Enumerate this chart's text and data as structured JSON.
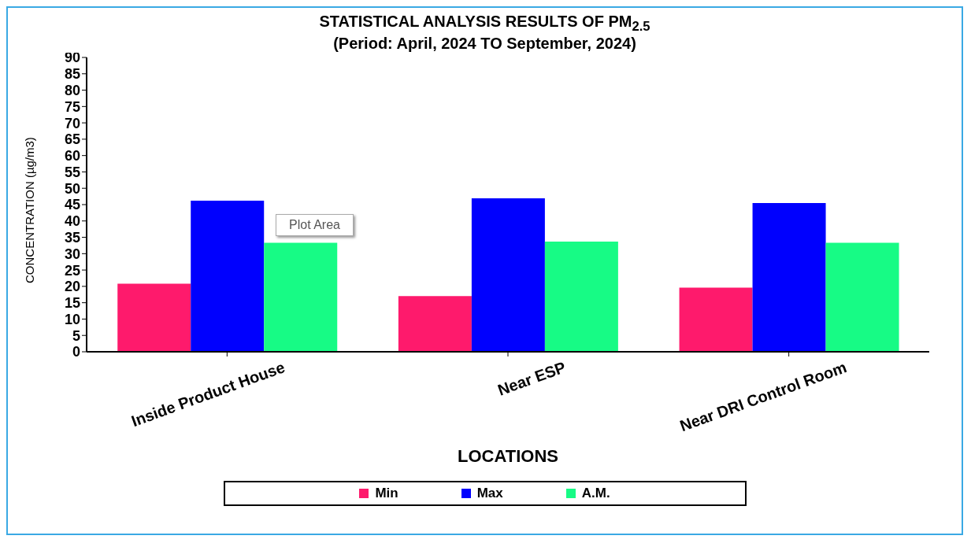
{
  "chart_data": {
    "type": "bar",
    "title": "STATISTICAL ANALYSIS RESULTS OF PM$_{2.5}$",
    "subtitle": "(Period: April, 2024 TO September, 2024)",
    "xlabel": "LOCATIONS",
    "ylabel": "CONCENTRATION (µg/m3)",
    "categories": [
      "Inside Product House",
      "Near ESP",
      "Near DRI Control Room"
    ],
    "series": [
      {
        "name": "Min",
        "color": "#fe1a6c",
        "values": [
          20.8,
          17.0,
          19.6
        ]
      },
      {
        "name": "Max",
        "color": "#0000fe",
        "values": [
          46.2,
          46.9,
          45.5
        ]
      },
      {
        "name": "A.M.",
        "color": "#17fb85",
        "values": [
          33.3,
          33.7,
          33.3
        ]
      }
    ],
    "ylim": [
      0,
      90
    ],
    "yticks": [
      0,
      5,
      10,
      15,
      20,
      25,
      30,
      35,
      40,
      45,
      50,
      55,
      60,
      65,
      70,
      75,
      80,
      85,
      90
    ],
    "grid": false,
    "legend": "bottom",
    "annotations": [
      "Plot Area"
    ]
  }
}
